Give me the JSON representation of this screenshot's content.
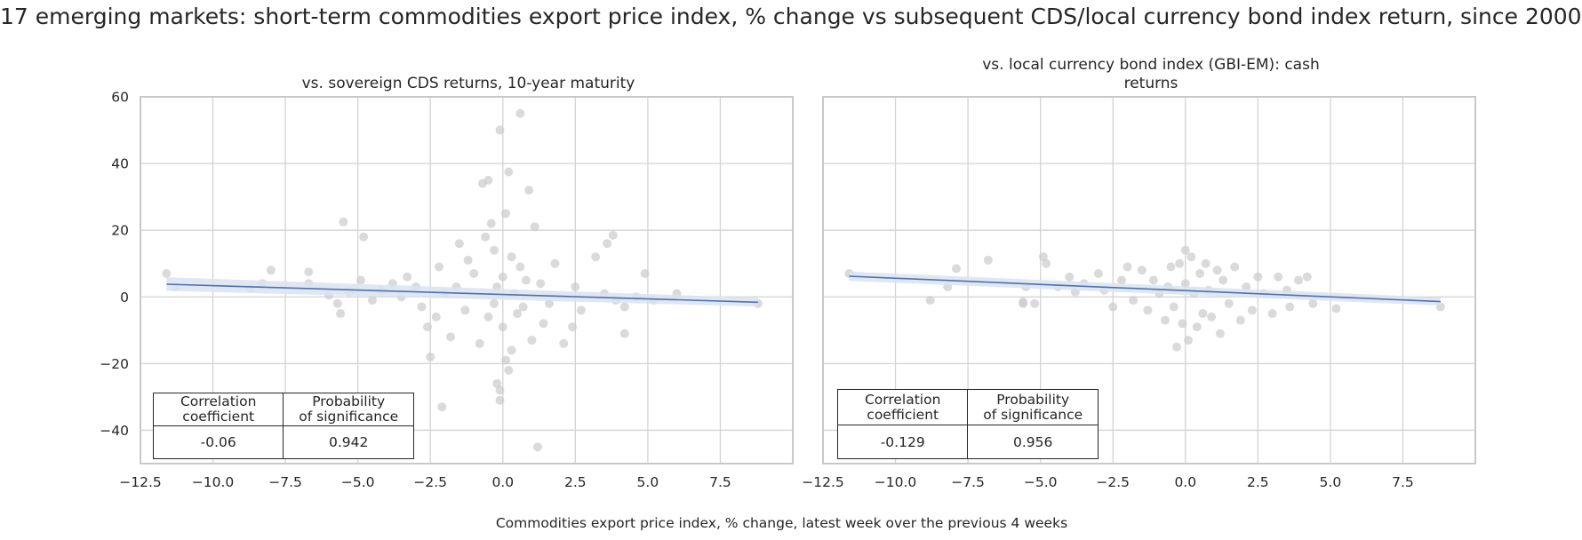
{
  "title": "17 emerging markets: short-term commodities export price index, % change vs subsequent CDS/local currency bond index return, since 2000",
  "xlabel": "Commodities export price index, % change, latest week over the previous 4 weeks",
  "colors": {
    "points": "#cccccc",
    "line": "#4c72b0",
    "band": "#dbe3f1",
    "grid": "#d3d3d3",
    "axes": "#c8c8c8"
  },
  "panels": [
    {
      "subtitle_lines": [
        "vs. sovereign CDS returns, 10-year maturity"
      ],
      "regression": {
        "x": [
          -11.6,
          8.8
        ],
        "y": [
          3.8,
          -1.6
        ],
        "ci_low": [
          1.8,
          -2.9
        ],
        "ci_high": [
          5.9,
          -0.3
        ]
      },
      "stats": {
        "header": [
          "Correlation\ncoefficient",
          "Probability\nof significance"
        ],
        "values": [
          "-0.06",
          "0.942"
        ]
      }
    },
    {
      "subtitle_lines": [
        "vs. local currency bond index (GBI-EM): cash",
        "returns"
      ],
      "regression": {
        "x": [
          -11.6,
          8.8
        ],
        "y": [
          6.2,
          -1.4
        ],
        "ci_low": [
          4.8,
          -2.6
        ],
        "ci_high": [
          7.6,
          -0.2
        ]
      },
      "stats": {
        "header": [
          "Correlation\ncoefficient",
          "Probability\nof significance"
        ],
        "values": [
          "-0.129",
          "0.956"
        ]
      }
    }
  ],
  "chart_data": [
    {
      "type": "scatter",
      "title": "vs. sovereign CDS returns, 10-year maturity",
      "xlabel": "Commodities export price index, % change, latest week over the previous 4 weeks",
      "ylabel": "",
      "xlim": [
        -12.5,
        10
      ],
      "ylim": [
        -50,
        60
      ],
      "xticks": [
        -12.5,
        -10.0,
        -7.5,
        -5.0,
        -2.5,
        0.0,
        2.5,
        5.0,
        7.5
      ],
      "xtick_labels": [
        "−12.5",
        "−10.0",
        "−7.5",
        "−5.0",
        "−2.5",
        "0.0",
        "2.5",
        "5.0",
        "7.5"
      ],
      "yticks": [
        -40,
        -20,
        0,
        20,
        40,
        60
      ],
      "ytick_labels": [
        "−40",
        "−20",
        "0",
        "20",
        "40",
        "60"
      ],
      "grid": true,
      "points": [
        [
          -11.6,
          7
        ],
        [
          -11.3,
          3
        ],
        [
          -8.7,
          2.5
        ],
        [
          -8.3,
          4
        ],
        [
          -8,
          8
        ],
        [
          -6.7,
          7.5
        ],
        [
          -6.7,
          4
        ],
        [
          -6,
          0.5
        ],
        [
          -5.7,
          -2
        ],
        [
          -5.6,
          -5
        ],
        [
          -5.5,
          22.5
        ],
        [
          -5.3,
          1.5
        ],
        [
          -4.9,
          5
        ],
        [
          -4.8,
          18
        ],
        [
          -4.5,
          -1
        ],
        [
          -4.2,
          2
        ],
        [
          -3.8,
          4
        ],
        [
          -3.5,
          0
        ],
        [
          -3.3,
          6
        ],
        [
          -3,
          3
        ],
        [
          -2.8,
          -3
        ],
        [
          -2.6,
          -9
        ],
        [
          -2.5,
          -18
        ],
        [
          -2.3,
          -6
        ],
        [
          -2.2,
          9
        ],
        [
          -2.1,
          -33
        ],
        [
          -2,
          1
        ],
        [
          -1.8,
          -12
        ],
        [
          -1.6,
          3
        ],
        [
          -1.5,
          16
        ],
        [
          -1.3,
          -4
        ],
        [
          -1.2,
          11
        ],
        [
          -1,
          7
        ],
        [
          -0.8,
          -14
        ],
        [
          -0.7,
          34
        ],
        [
          -0.6,
          18
        ],
        [
          -0.5,
          35
        ],
        [
          -0.5,
          -6
        ],
        [
          -0.4,
          22
        ],
        [
          -0.3,
          14
        ],
        [
          -0.3,
          -2
        ],
        [
          -0.2,
          3
        ],
        [
          -0.2,
          -26
        ],
        [
          -0.1,
          50
        ],
        [
          -0.1,
          -31
        ],
        [
          -0.1,
          -28
        ],
        [
          0.0,
          6
        ],
        [
          0.0,
          -9
        ],
        [
          0.1,
          25
        ],
        [
          0.1,
          -19
        ],
        [
          0.2,
          37.5
        ],
        [
          0.2,
          -22
        ],
        [
          0.3,
          12
        ],
        [
          0.3,
          -16
        ],
        [
          0.4,
          1
        ],
        [
          0.5,
          -5
        ],
        [
          0.6,
          55
        ],
        [
          0.6,
          9
        ],
        [
          0.7,
          -3
        ],
        [
          0.8,
          5
        ],
        [
          0.9,
          32
        ],
        [
          1.0,
          -13
        ],
        [
          1.1,
          21
        ],
        [
          1.2,
          -45
        ],
        [
          1.3,
          4
        ],
        [
          1.4,
          -8
        ],
        [
          1.6,
          -2
        ],
        [
          1.8,
          10
        ],
        [
          2.1,
          -14
        ],
        [
          2.4,
          -9
        ],
        [
          2.5,
          3
        ],
        [
          2.7,
          -4
        ],
        [
          3.2,
          12
        ],
        [
          3.5,
          1
        ],
        [
          3.6,
          16
        ],
        [
          3.8,
          18.5
        ],
        [
          3.9,
          -1
        ],
        [
          4.2,
          -3
        ],
        [
          4.2,
          -11
        ],
        [
          4.6,
          0
        ],
        [
          4.9,
          7
        ],
        [
          5.2,
          -1
        ],
        [
          6.0,
          1
        ],
        [
          8.8,
          -2
        ]
      ],
      "regression": {
        "x": [
          -11.6,
          8.8
        ],
        "y": [
          3.8,
          -1.6
        ]
      },
      "stats": {
        "correlation_coefficient": -0.06,
        "probability_of_significance": 0.942
      }
    },
    {
      "type": "scatter",
      "title": "vs. local currency bond index (GBI-EM): cash returns",
      "xlabel": "Commodities export price index, % change, latest week over the previous 4 weeks",
      "ylabel": "",
      "xlim": [
        -12.5,
        10
      ],
      "ylim": [
        -50,
        60
      ],
      "xticks": [
        -12.5,
        -10.0,
        -7.5,
        -5.0,
        -2.5,
        0.0,
        2.5,
        5.0,
        7.5
      ],
      "xtick_labels": [
        "−12.5",
        "−10.0",
        "−7.5",
        "−5.0",
        "−2.5",
        "0.0",
        "2.5",
        "5.0",
        "7.5"
      ],
      "grid": true,
      "points": [
        [
          -11.6,
          7
        ],
        [
          -8.8,
          -1
        ],
        [
          -8.2,
          3
        ],
        [
          -7.9,
          8.5
        ],
        [
          -6.8,
          11
        ],
        [
          -5.6,
          -2
        ],
        [
          -5.6,
          -1.5
        ],
        [
          -5.5,
          3
        ],
        [
          -5.2,
          -2
        ],
        [
          -4.9,
          12
        ],
        [
          -4.8,
          10
        ],
        [
          -4.4,
          3
        ],
        [
          -4.0,
          6
        ],
        [
          -3.8,
          1.5
        ],
        [
          -3.5,
          4
        ],
        [
          -3.0,
          7
        ],
        [
          -2.8,
          2
        ],
        [
          -2.5,
          -3
        ],
        [
          -2.2,
          5
        ],
        [
          -2.0,
          9
        ],
        [
          -1.8,
          -1
        ],
        [
          -1.5,
          8
        ],
        [
          -1.3,
          -4
        ],
        [
          -1.1,
          5
        ],
        [
          -0.9,
          1
        ],
        [
          -0.7,
          -7
        ],
        [
          -0.6,
          3
        ],
        [
          -0.5,
          9
        ],
        [
          -0.4,
          -3
        ],
        [
          -0.3,
          -15
        ],
        [
          -0.2,
          10
        ],
        [
          -0.1,
          -8
        ],
        [
          0.0,
          14
        ],
        [
          0.0,
          4
        ],
        [
          0.1,
          -13
        ],
        [
          0.2,
          12
        ],
        [
          0.3,
          1
        ],
        [
          0.4,
          -9
        ],
        [
          0.5,
          7
        ],
        [
          0.6,
          -5
        ],
        [
          0.7,
          10
        ],
        [
          0.8,
          2
        ],
        [
          0.9,
          -6
        ],
        [
          1.1,
          8
        ],
        [
          1.2,
          -11
        ],
        [
          1.3,
          5
        ],
        [
          1.5,
          -2
        ],
        [
          1.7,
          9
        ],
        [
          1.9,
          -7
        ],
        [
          2.1,
          3
        ],
        [
          2.3,
          -4
        ],
        [
          2.5,
          6
        ],
        [
          2.7,
          1
        ],
        [
          3.0,
          -5
        ],
        [
          3.2,
          6
        ],
        [
          3.5,
          2
        ],
        [
          3.6,
          -3
        ],
        [
          3.9,
          5
        ],
        [
          4.2,
          6
        ],
        [
          4.4,
          -2
        ],
        [
          5.2,
          -3.5
        ],
        [
          8.8,
          -3
        ]
      ],
      "regression": {
        "x": [
          -11.6,
          8.8
        ],
        "y": [
          6.2,
          -1.4
        ]
      },
      "stats": {
        "correlation_coefficient": -0.129,
        "probability_of_significance": 0.956
      }
    }
  ]
}
